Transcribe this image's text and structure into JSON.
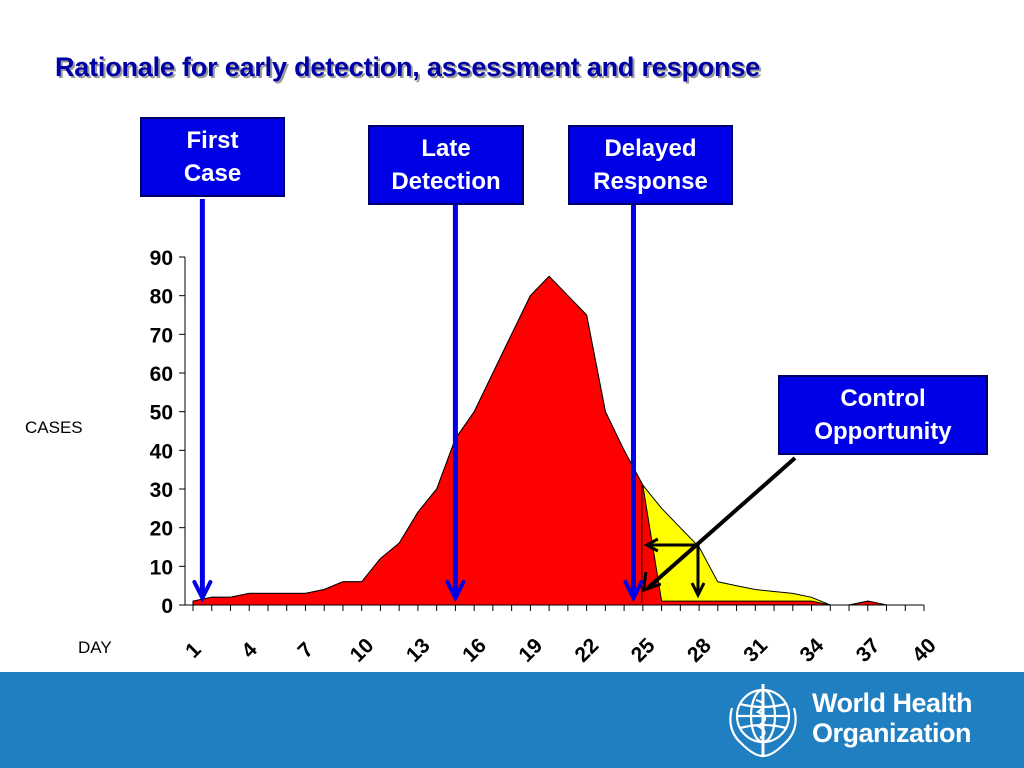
{
  "title": "Rationale for early detection, assessment and response",
  "callouts": {
    "first_case": [
      "First",
      "Case"
    ],
    "late_detection": [
      "Late",
      "Detection"
    ],
    "delayed_response": [
      "Delayed",
      "Response"
    ],
    "control_opportunity": [
      "Control",
      "Opportunity"
    ]
  },
  "labels": {
    "cases": "CASES",
    "day": "DAY"
  },
  "footer": {
    "org_line1": "World Health",
    "org_line2": "Organization"
  },
  "colors": {
    "outbreak_fill": "#ff0000",
    "controllable_fill": "#ffff00",
    "callout_bg": "#0000e6",
    "footer_bg": "#1f7fc1",
    "arrow_blue": "#0000e6"
  },
  "chart_data": {
    "type": "area",
    "title": "",
    "xlabel": "DAY",
    "ylabel": "CASES",
    "x": [
      1,
      2,
      3,
      4,
      5,
      6,
      7,
      8,
      9,
      10,
      11,
      12,
      13,
      14,
      15,
      16,
      17,
      18,
      19,
      20,
      21,
      22,
      23,
      24,
      25,
      26,
      27,
      28,
      29,
      30,
      31,
      32,
      33,
      34,
      35,
      36,
      37,
      38,
      39,
      40
    ],
    "xticks": [
      "1",
      "4",
      "7",
      "10",
      "13",
      "16",
      "19",
      "22",
      "25",
      "28",
      "31",
      "34",
      "37",
      "40"
    ],
    "xlim": [
      1,
      40
    ],
    "ylim": [
      0,
      90
    ],
    "yticks": [
      "0",
      "10",
      "20",
      "30",
      "40",
      "50",
      "60",
      "70",
      "80",
      "90"
    ],
    "series": [
      {
        "fill": "#ffff00",
        "values": [
          1,
          2,
          2,
          3,
          3,
          3,
          3,
          4,
          6,
          6,
          12,
          16,
          24,
          30,
          43,
          50,
          60,
          70,
          80,
          85,
          80,
          75,
          50,
          40,
          31,
          25,
          20,
          15,
          6,
          5,
          4,
          3.5,
          3,
          2,
          0,
          0,
          1,
          0,
          0,
          0
        ]
      },
      {
        "fill": "#ff0000",
        "values": [
          1,
          2,
          2,
          3,
          3,
          3,
          3,
          4,
          6,
          6,
          12,
          16,
          24,
          30,
          43,
          50,
          60,
          70,
          80,
          85,
          80,
          75,
          50,
          40,
          31,
          1,
          1,
          1,
          1,
          1,
          1,
          1,
          1,
          1,
          0,
          0,
          1,
          0,
          0,
          0
        ]
      }
    ],
    "markers": {
      "first_case_day": 1.5,
      "late_detection_day": 15,
      "delayed_response_day": 24.5,
      "control_start_day": 25
    },
    "grid": false,
    "legend": "none"
  }
}
